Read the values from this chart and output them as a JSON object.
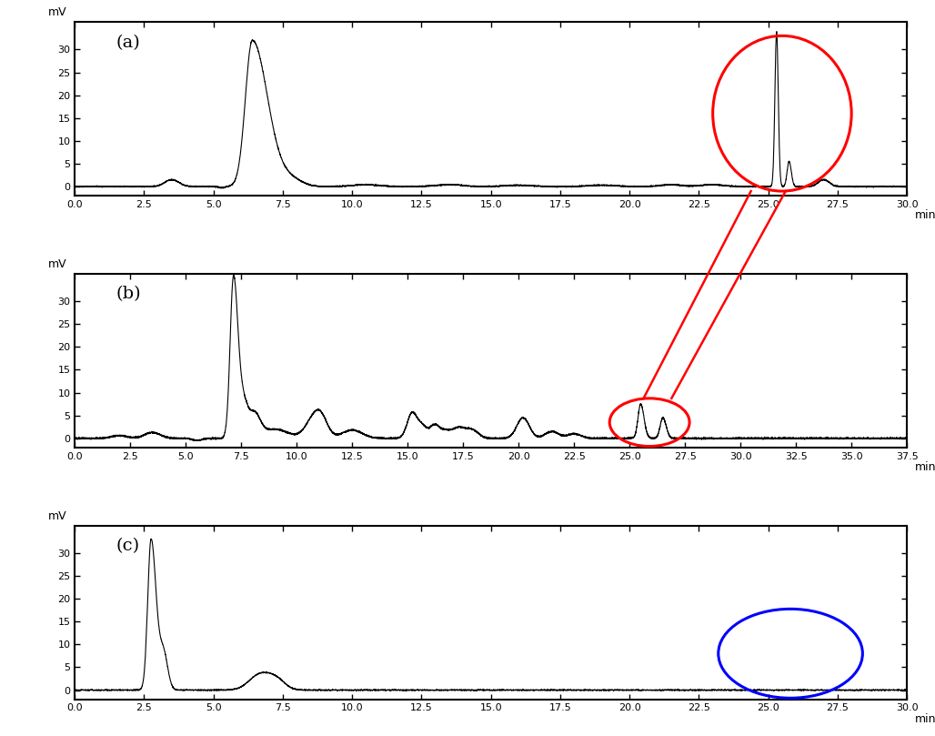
{
  "fig_width": 10.28,
  "fig_height": 8.09,
  "bg_color": "#ffffff",
  "panel_a": {
    "label": "(a)",
    "xlim": [
      0,
      30
    ],
    "ylim": [
      -2,
      36
    ],
    "xticks": [
      0.0,
      2.5,
      5.0,
      7.5,
      10.0,
      12.5,
      15.0,
      17.5,
      20.0,
      22.5,
      25.0,
      27.5,
      30.0
    ],
    "yticks": [
      0,
      5,
      10,
      15,
      20,
      25,
      30
    ],
    "xlabel": "min",
    "ylabel": "mV"
  },
  "panel_b": {
    "label": "(b)",
    "xlim": [
      0,
      37.5
    ],
    "ylim": [
      -2,
      36
    ],
    "xticks": [
      0.0,
      2.5,
      5.0,
      7.5,
      10.0,
      12.5,
      15.0,
      17.5,
      20.0,
      22.5,
      25.0,
      27.5,
      30.0,
      32.5,
      35.0,
      37.5
    ],
    "yticks": [
      0,
      5,
      10,
      15,
      20,
      25,
      30
    ],
    "xlabel": "min",
    "ylabel": "mV"
  },
  "panel_c": {
    "label": "(c)",
    "xlim": [
      0,
      30
    ],
    "ylim": [
      -2,
      36
    ],
    "xticks": [
      0.0,
      2.5,
      5.0,
      7.5,
      10.0,
      12.5,
      15.0,
      17.5,
      20.0,
      22.5,
      25.0,
      27.5,
      30.0
    ],
    "yticks": [
      0,
      5,
      10,
      15,
      20,
      25,
      30
    ],
    "xlabel": "min",
    "ylabel": "mV"
  },
  "label_fontsize": 14,
  "tick_fontsize": 8,
  "axis_label_fontsize": 9
}
